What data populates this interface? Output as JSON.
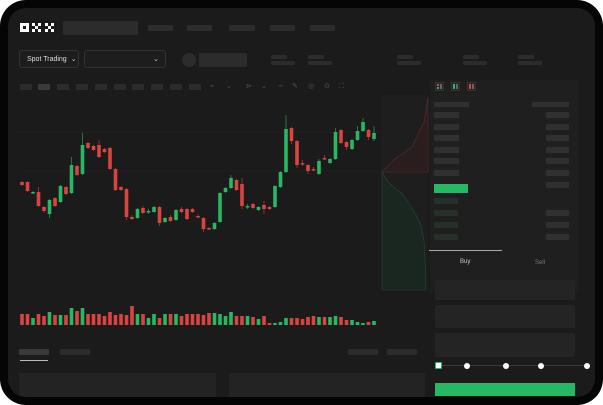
{
  "header": {
    "logo": "OKX"
  },
  "instrument": {
    "market_select": "Spot Trading"
  },
  "trade": {
    "tabs": [
      "Buy",
      "Sell"
    ],
    "active_tab": "Buy",
    "slider_percent": 0
  },
  "colors": {
    "up": "#26b863",
    "down": "#d9443f",
    "bg": "#1b1b1b",
    "accent": "#26b863"
  },
  "chart_data": {
    "type": "candlestick",
    "candles": [
      [
        68,
        69,
        64,
        65
      ],
      [
        68,
        69,
        58,
        59
      ],
      [
        57,
        59,
        56,
        58
      ],
      [
        58,
        63,
        43,
        44
      ],
      [
        43,
        44,
        37,
        39
      ],
      [
        36,
        51,
        32,
        50
      ],
      [
        52,
        53,
        43,
        44
      ],
      [
        48,
        65,
        47,
        64
      ],
      [
        63,
        64,
        55,
        56
      ],
      [
        57,
        93,
        56,
        85
      ],
      [
        84,
        85,
        74,
        75
      ],
      [
        76,
        117,
        75,
        105
      ],
      [
        107,
        108,
        101,
        102
      ],
      [
        104,
        105,
        99,
        100
      ],
      [
        105,
        110,
        92,
        93
      ],
      [
        101,
        102,
        97,
        98
      ],
      [
        102,
        103,
        80,
        81
      ],
      [
        81,
        82,
        59,
        60
      ],
      [
        63,
        64,
        59,
        60
      ],
      [
        61,
        62,
        30,
        33
      ],
      [
        33,
        35,
        30,
        31
      ],
      [
        32,
        42,
        31,
        41
      ],
      [
        42,
        44,
        36,
        37
      ],
      [
        38,
        41,
        36,
        39
      ],
      [
        38,
        44,
        37,
        43
      ],
      [
        43,
        44,
        24,
        27
      ],
      [
        28,
        33,
        27,
        32
      ],
      [
        33,
        35,
        28,
        29
      ],
      [
        30,
        41,
        29,
        40
      ],
      [
        41,
        43,
        37,
        38
      ],
      [
        41,
        42,
        30,
        31
      ],
      [
        41,
        42,
        37,
        38
      ],
      [
        34,
        36,
        32,
        33
      ],
      [
        32,
        33,
        18,
        21
      ],
      [
        22,
        23,
        20,
        21
      ],
      [
        21,
        28,
        20,
        27
      ],
      [
        28,
        58,
        27,
        57
      ],
      [
        58,
        63,
        57,
        62
      ],
      [
        62,
        75,
        61,
        72
      ],
      [
        70,
        71,
        59,
        60
      ],
      [
        66,
        72,
        41,
        44
      ],
      [
        43,
        46,
        41,
        44
      ],
      [
        46,
        47,
        41,
        42
      ],
      [
        40,
        44,
        39,
        43
      ],
      [
        45,
        49,
        36,
        41
      ],
      [
        43,
        44,
        40,
        41
      ],
      [
        43,
        65,
        42,
        64
      ],
      [
        63,
        79,
        62,
        78
      ],
      [
        78,
        135,
        77,
        121
      ],
      [
        122,
        123,
        106,
        109
      ],
      [
        109,
        110,
        82,
        85
      ],
      [
        87,
        90,
        84,
        86
      ],
      [
        85,
        86,
        76,
        79
      ],
      [
        81,
        83,
        79,
        80
      ],
      [
        76,
        91,
        75,
        89
      ],
      [
        92,
        95,
        90,
        91
      ],
      [
        87,
        92,
        86,
        91
      ],
      [
        91,
        122,
        90,
        118
      ],
      [
        120,
        121,
        106,
        107
      ],
      [
        108,
        109,
        100,
        103
      ],
      [
        101,
        111,
        100,
        110
      ],
      [
        110,
        124,
        109,
        119
      ],
      [
        119,
        132,
        118,
        128
      ],
      [
        120,
        121,
        110,
        113
      ],
      [
        111,
        124,
        109,
        117
      ]
    ],
    "volumes": [
      11,
      11,
      7,
      11,
      9,
      13,
      10,
      10,
      10,
      17,
      14,
      17,
      11,
      11,
      11,
      9,
      13,
      10,
      11,
      10,
      19,
      11,
      11,
      7,
      11,
      7,
      11,
      11,
      11,
      9,
      11,
      11,
      11,
      10,
      12,
      12,
      11,
      9,
      13,
      9,
      9,
      9,
      8,
      6,
      9,
      2,
      2,
      3,
      7,
      7,
      7,
      6,
      8,
      9,
      8,
      8,
      8,
      9,
      8,
      5,
      5,
      3,
      2,
      3,
      4
    ],
    "ylim": [
      20,
      140
    ],
    "grid": true
  }
}
